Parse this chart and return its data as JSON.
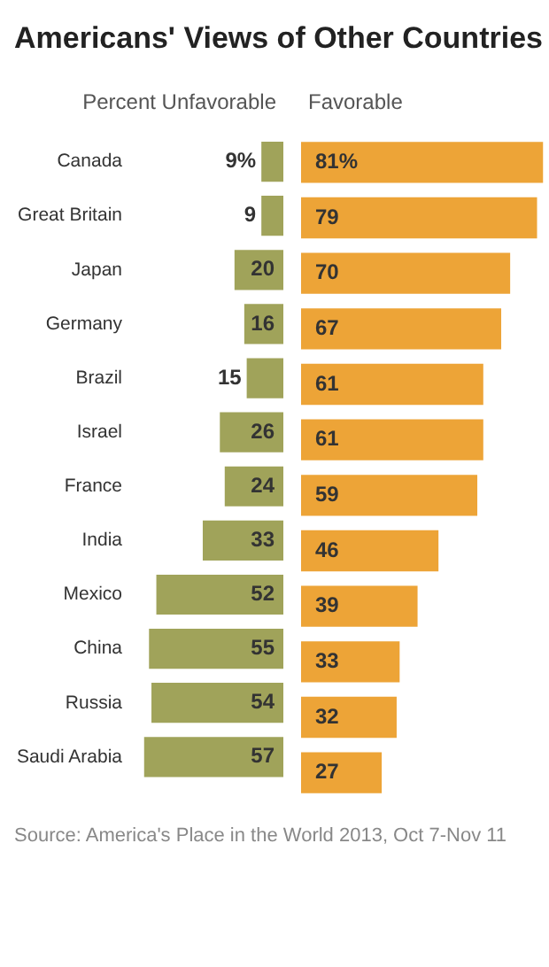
{
  "chart_data": [
    {
      "type": "bar",
      "orientation": "horizontal",
      "title": "Americans' Views of Other Countries",
      "categories": [
        "Canada",
        "Great Britain",
        "Japan",
        "Germany",
        "Brazil",
        "Israel",
        "France",
        "India",
        "Mexico",
        "China",
        "Russia",
        "Saudi Arabia"
      ],
      "xlim": [
        58,
        0
      ],
      "series": [
        {
          "name": "Percent Unfavorable",
          "color": "#a0a35a",
          "values": [
            9,
            9,
            20,
            16,
            15,
            26,
            24,
            33,
            52,
            55,
            54,
            57
          ],
          "value_labels": [
            "9%",
            "9",
            "20",
            "16",
            "15",
            "26",
            "24",
            "33",
            "52",
            "55",
            "54",
            "57"
          ]
        }
      ]
    },
    {
      "type": "bar",
      "orientation": "horizontal",
      "categories": [
        null,
        null,
        null,
        null,
        null,
        null,
        null,
        null,
        null,
        null,
        null,
        null
      ],
      "xlim": [
        0,
        83
      ],
      "annotations": [
        "Source: America's Place in the World 2013, Oct 7-Nov 11"
      ],
      "series": [
        {
          "name": "Favorable",
          "color": "#eda437",
          "values": [
            81,
            79,
            70,
            67,
            61,
            61,
            59,
            46,
            39,
            33,
            32,
            27
          ],
          "value_labels": [
            "81%",
            "79",
            "70",
            "67",
            "61",
            "61",
            "59",
            "46",
            "39",
            "33",
            "32",
            "27"
          ]
        }
      ]
    }
  ]
}
